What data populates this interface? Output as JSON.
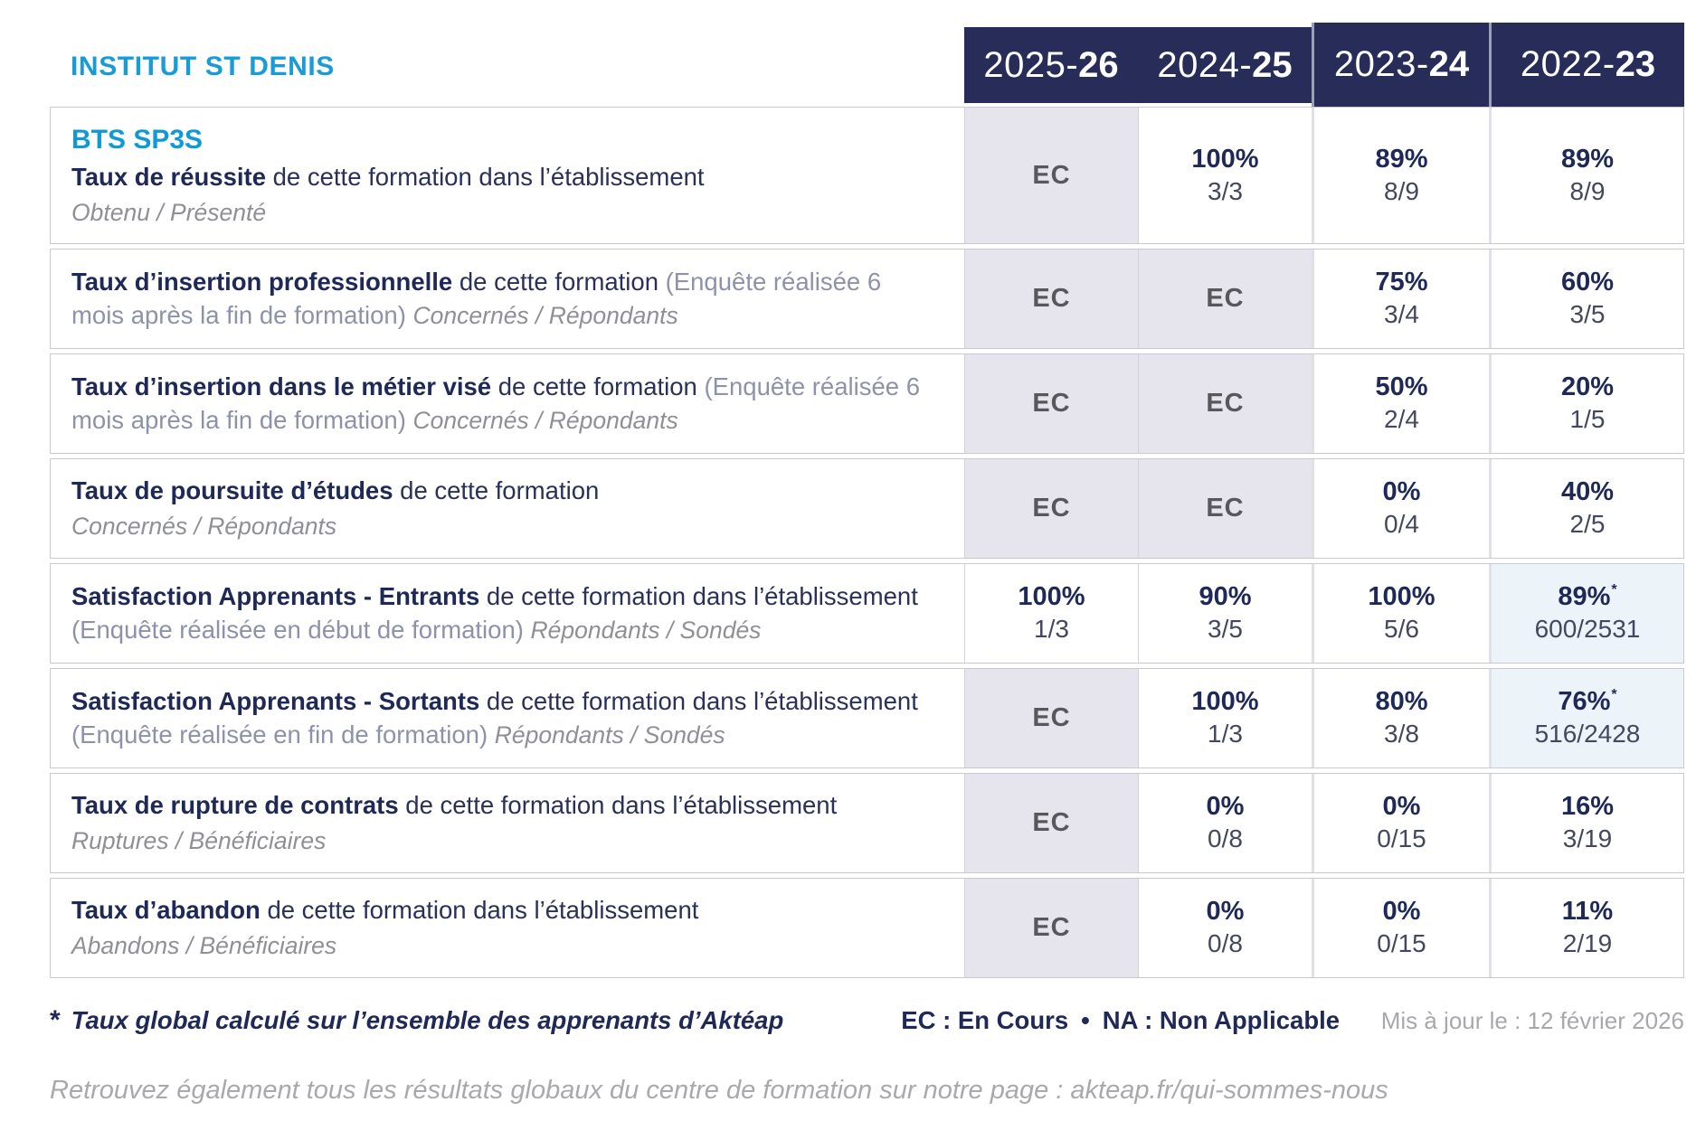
{
  "brand": {
    "institute": "INSTITUT ST DENIS",
    "program": "BTS SP3S"
  },
  "header": {
    "years": [
      {
        "pre": "2025-",
        "suf": "26"
      },
      {
        "pre": "2024-",
        "suf": "25"
      },
      {
        "pre": "2023-",
        "suf": "24"
      },
      {
        "pre": "2022-",
        "suf": "23"
      }
    ]
  },
  "rows": [
    {
      "title": "Taux de réussite",
      "desc": "de cette formation dans l’établissement",
      "sub": "Obtenu / Présenté",
      "cells": [
        {
          "text": "EC"
        },
        {
          "pct": "100%",
          "ratio": "3/3"
        },
        {
          "pct": "89%",
          "ratio": "8/9"
        },
        {
          "pct": "89%",
          "ratio": "8/9"
        }
      ]
    },
    {
      "title": "Taux d’insertion professionnelle",
      "desc": "de cette formation",
      "paren": "(Enquête réalisée 6 mois après la fin de formation)",
      "sub": "Concernés / Répondants",
      "cells": [
        {
          "text": "EC"
        },
        {
          "text": "EC"
        },
        {
          "pct": "75%",
          "ratio": "3/4"
        },
        {
          "pct": "60%",
          "ratio": "3/5"
        }
      ]
    },
    {
      "title": "Taux d’insertion dans le métier visé",
      "desc": "de cette formation",
      "paren": "(Enquête réalisée 6 mois après la fin de formation)",
      "sub": "Concernés / Répondants",
      "cells": [
        {
          "text": "EC"
        },
        {
          "text": "EC"
        },
        {
          "pct": "50%",
          "ratio": "2/4"
        },
        {
          "pct": "20%",
          "ratio": "1/5"
        }
      ]
    },
    {
      "title": "Taux de poursuite d’études",
      "desc": "de cette formation",
      "sub": "Concernés / Répondants",
      "cells": [
        {
          "text": "EC"
        },
        {
          "text": "EC"
        },
        {
          "pct": "0%",
          "ratio": "0/4"
        },
        {
          "pct": "40%",
          "ratio": "2/5"
        }
      ]
    },
    {
      "title": "Satisfaction Apprenants - Entrants",
      "desc": "de cette formation dans l’établissement",
      "paren": "(Enquête réalisée en début de formation)",
      "sub": "Répondants / Sondés",
      "cells": [
        {
          "pct": "100%",
          "ratio": "1/3"
        },
        {
          "pct": "90%",
          "ratio": "3/5"
        },
        {
          "pct": "100%",
          "ratio": "5/6"
        },
        {
          "pct": "89%",
          "star": "*",
          "ratio": "600/2531",
          "highlight": true
        }
      ]
    },
    {
      "title": "Satisfaction Apprenants - Sortants",
      "desc": "de cette formation dans l’établissement",
      "paren": "(Enquête réalisée en fin de formation)",
      "sub": "Répondants / Sondés",
      "cells": [
        {
          "text": "EC"
        },
        {
          "pct": "100%",
          "ratio": "1/3"
        },
        {
          "pct": "80%",
          "ratio": "3/8"
        },
        {
          "pct": "76%",
          "star": "*",
          "ratio": "516/2428",
          "highlight": true
        }
      ]
    },
    {
      "title": "Taux de rupture de contrats",
      "desc": "de cette formation dans l’établissement",
      "sub": "Ruptures / Bénéficiaires",
      "cells": [
        {
          "text": "EC"
        },
        {
          "pct": "0%",
          "ratio": "0/8"
        },
        {
          "pct": "0%",
          "ratio": "0/15"
        },
        {
          "pct": "16%",
          "ratio": "3/19"
        }
      ]
    },
    {
      "title": "Taux d’abandon",
      "desc": "de cette formation dans l’établissement",
      "sub": "Abandons / Bénéficiaires",
      "cells": [
        {
          "text": "EC"
        },
        {
          "pct": "0%",
          "ratio": "0/8"
        },
        {
          "pct": "0%",
          "ratio": "0/15"
        },
        {
          "pct": "11%",
          "ratio": "2/19"
        }
      ]
    }
  ],
  "legend": {
    "note_mark": "*",
    "note": "Taux global calculé sur l’ensemble des apprenants d’Aktéap",
    "ec_label": "EC : En Cours",
    "bullet": "•",
    "na_label": "NA : Non Applicable",
    "updated": "Mis à jour le : 12 février 2026"
  },
  "footer": {
    "text": "Retrouvez également tous les résultats globaux du centre de formation sur notre page : akteap.fr/qui-sommes-nous"
  },
  "colors": {
    "accent_blue": "#189cd8",
    "header_navy": "#272d58",
    "text_navy": "#1f2957",
    "ec_cell_bg": "#e6e5ed",
    "highlight_cell_bg": "#ecf4fa"
  }
}
